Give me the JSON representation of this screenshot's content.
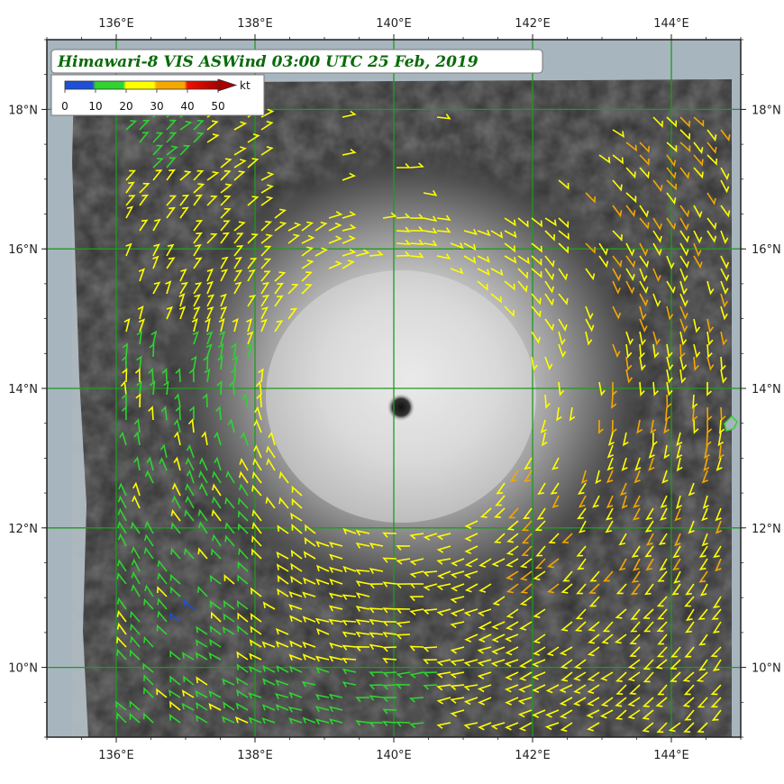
{
  "title": "Himawari-8 VIS ASWind 03:00 UTC 25 Feb, 2019",
  "legend": {
    "unit": "kt",
    "ticks": [
      "0",
      "10",
      "20",
      "30",
      "40",
      "50"
    ],
    "colors": [
      "#1f4fd6",
      "#2fd42f",
      "#ffff00",
      "#f5a800",
      "#ee1100"
    ]
  },
  "lon_ticks": [
    "136°E",
    "138°E",
    "140°E",
    "142°E",
    "144°E"
  ],
  "lat_ticks": [
    "18°N",
    "16°N",
    "14°N",
    "12°N",
    "10°N"
  ],
  "lon_values": [
    136,
    138,
    140,
    142,
    144
  ],
  "lat_values": [
    18,
    16,
    14,
    12,
    10
  ],
  "map_extent": {
    "lon": [
      135,
      145
    ],
    "lat": [
      9,
      19
    ]
  },
  "typhoon_eye": {
    "lon": 140.1,
    "lat": 13.9
  },
  "colors": {
    "grid": "#1f9a1f",
    "land": "#a7b5be",
    "frame": "#222222"
  }
}
